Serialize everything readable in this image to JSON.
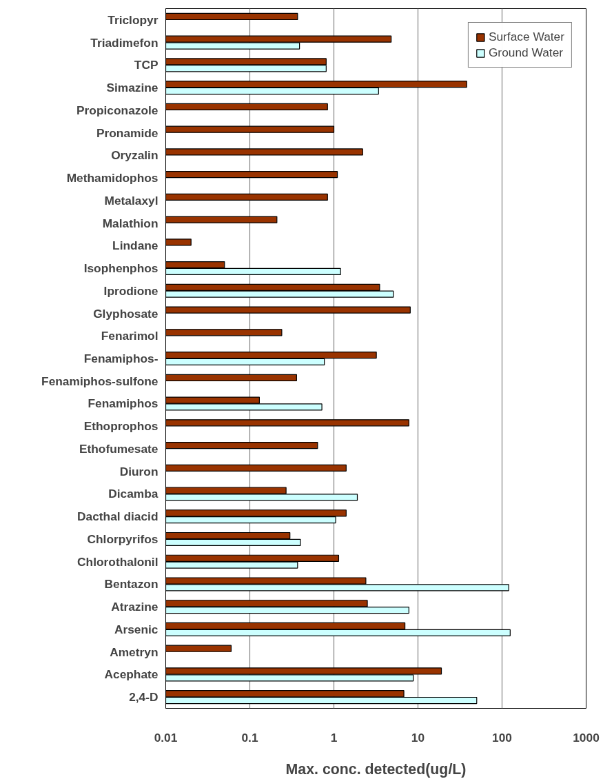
{
  "chart_data": {
    "type": "bar",
    "orientation": "horizontal",
    "log": "x",
    "xlabel": "Max. conc. detected(ug/L)",
    "categories": [
      "Triclopyr",
      "Triadimefon",
      "TCP",
      "Simazine",
      "Propiconazole",
      "Pronamide",
      "Oryzalin",
      "Methamidophos",
      "Metalaxyl",
      "Malathion",
      "Lindane",
      "Isophenphos",
      "Iprodione",
      "Glyphosate",
      "Fenarimol",
      "Fenamiphos-",
      "Fenamiphos-sulfone",
      "Fenamiphos",
      "Ethoprophos",
      "Ethofumesate",
      "Diuron",
      "Dicamba",
      "Dacthal diacid",
      "Chlorpyrifos",
      "Chlorothalonil",
      "Bentazon",
      "Atrazine",
      "Arsenic",
      "Ametryn",
      "Acephate",
      "2,4-D"
    ],
    "series": [
      {
        "name": "Surface Water",
        "color": "#993300",
        "values": [
          0.37,
          4.8,
          0.81,
          38,
          0.84,
          1.0,
          2.2,
          1.1,
          0.84,
          0.21,
          0.02,
          0.05,
          3.5,
          8.1,
          0.24,
          3.2,
          0.36,
          0.13,
          7.8,
          0.64,
          1.4,
          0.27,
          1.4,
          0.3,
          1.14,
          2.4,
          2.5,
          7.0,
          0.06,
          19,
          6.8
        ]
      },
      {
        "name": "Ground Water",
        "color": "#ccffff",
        "values": [
          null,
          0.39,
          0.81,
          3.4,
          null,
          null,
          null,
          null,
          null,
          null,
          null,
          1.2,
          5.1,
          null,
          null,
          0.77,
          null,
          0.72,
          null,
          null,
          null,
          1.9,
          1.05,
          0.4,
          0.37,
          120,
          7.8,
          125,
          null,
          8.8,
          50
        ]
      }
    ],
    "xlim": [
      0.01,
      1000
    ],
    "xticks": [
      0.01,
      0.1,
      1,
      10,
      100,
      1000
    ],
    "grid": "x",
    "legend": "top right"
  }
}
